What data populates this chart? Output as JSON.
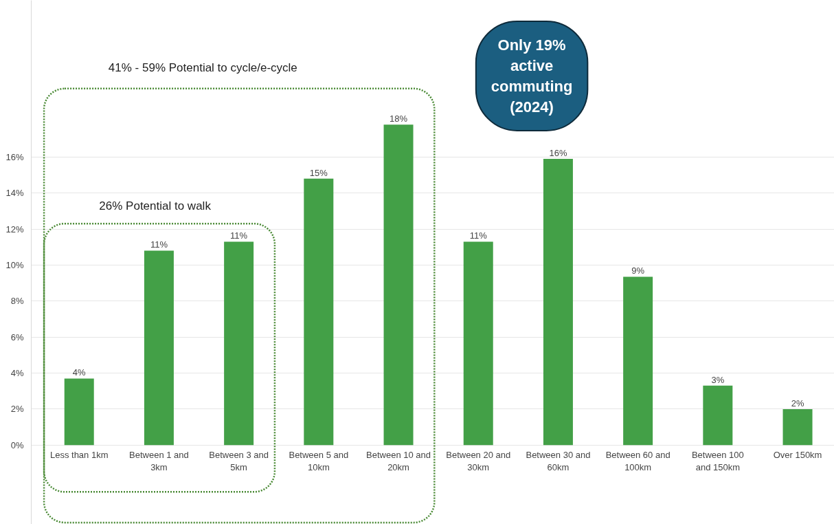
{
  "chart_data": {
    "type": "bar",
    "categories": [
      "Less than 1km",
      "Between 1 and 3km",
      "Between 3 and 5km",
      "Between 5 and 10km",
      "Between 10 and 20km",
      "Between 20 and 30km",
      "Between 30 and 60km",
      "Between 60 and 100km",
      "Between 100 and 150km",
      "Over 150km"
    ],
    "values": [
      3.7,
      10.8,
      11.3,
      14.8,
      17.8,
      11.3,
      15.9,
      9.35,
      3.3,
      2.0
    ],
    "value_labels": [
      "4%",
      "11%",
      "11%",
      "15%",
      "18%",
      "11%",
      "16%",
      "9%",
      "3%",
      "2%"
    ],
    "color": "#43a047",
    "ylim": [
      -4.4,
      24.7
    ],
    "yticks": [
      {
        "value": 0,
        "label": "0%"
      },
      {
        "value": 2,
        "label": "2%"
      },
      {
        "value": 4,
        "label": "4%"
      },
      {
        "value": 6,
        "label": "6%"
      },
      {
        "value": 8,
        "label": "8%"
      },
      {
        "value": 10,
        "label": "10%"
      },
      {
        "value": 12,
        "label": "12%"
      },
      {
        "value": 14,
        "label": "14%"
      },
      {
        "value": 16,
        "label": "16%"
      }
    ],
    "grid": "y",
    "annotations": [
      "41% - 59% Potential to cycle/e-cycle",
      "26% Potential to walk",
      "Only 19% active commuting (2024)"
    ]
  }
}
